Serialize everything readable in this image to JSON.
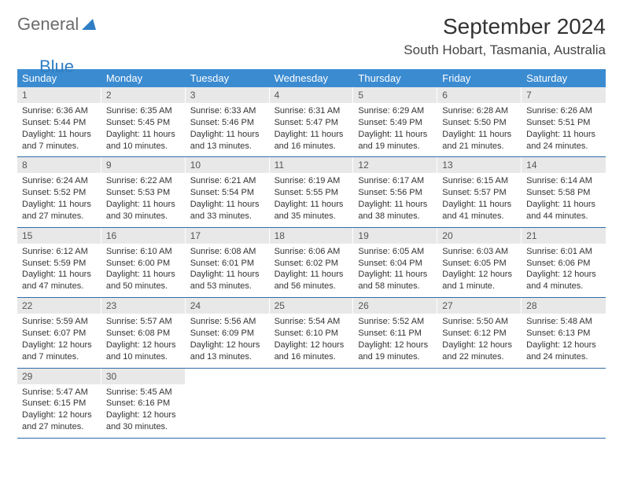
{
  "logo": {
    "part1": "General",
    "part2": "Blue"
  },
  "title": "September 2024",
  "location": "South Hobart, Tasmania, Australia",
  "colors": {
    "header_bg": "#3b8bd1",
    "daynum_bg": "#e8e8e8",
    "row_border": "#2f6ca8",
    "logo_gray": "#6b6b6b",
    "logo_blue": "#2f7dc4"
  },
  "weekdays": [
    "Sunday",
    "Monday",
    "Tuesday",
    "Wednesday",
    "Thursday",
    "Friday",
    "Saturday"
  ],
  "days": [
    {
      "n": "1",
      "sr": "Sunrise: 6:36 AM",
      "ss": "Sunset: 5:44 PM",
      "d1": "Daylight: 11 hours",
      "d2": "and 7 minutes."
    },
    {
      "n": "2",
      "sr": "Sunrise: 6:35 AM",
      "ss": "Sunset: 5:45 PM",
      "d1": "Daylight: 11 hours",
      "d2": "and 10 minutes."
    },
    {
      "n": "3",
      "sr": "Sunrise: 6:33 AM",
      "ss": "Sunset: 5:46 PM",
      "d1": "Daylight: 11 hours",
      "d2": "and 13 minutes."
    },
    {
      "n": "4",
      "sr": "Sunrise: 6:31 AM",
      "ss": "Sunset: 5:47 PM",
      "d1": "Daylight: 11 hours",
      "d2": "and 16 minutes."
    },
    {
      "n": "5",
      "sr": "Sunrise: 6:29 AM",
      "ss": "Sunset: 5:49 PM",
      "d1": "Daylight: 11 hours",
      "d2": "and 19 minutes."
    },
    {
      "n": "6",
      "sr": "Sunrise: 6:28 AM",
      "ss": "Sunset: 5:50 PM",
      "d1": "Daylight: 11 hours",
      "d2": "and 21 minutes."
    },
    {
      "n": "7",
      "sr": "Sunrise: 6:26 AM",
      "ss": "Sunset: 5:51 PM",
      "d1": "Daylight: 11 hours",
      "d2": "and 24 minutes."
    },
    {
      "n": "8",
      "sr": "Sunrise: 6:24 AM",
      "ss": "Sunset: 5:52 PM",
      "d1": "Daylight: 11 hours",
      "d2": "and 27 minutes."
    },
    {
      "n": "9",
      "sr": "Sunrise: 6:22 AM",
      "ss": "Sunset: 5:53 PM",
      "d1": "Daylight: 11 hours",
      "d2": "and 30 minutes."
    },
    {
      "n": "10",
      "sr": "Sunrise: 6:21 AM",
      "ss": "Sunset: 5:54 PM",
      "d1": "Daylight: 11 hours",
      "d2": "and 33 minutes."
    },
    {
      "n": "11",
      "sr": "Sunrise: 6:19 AM",
      "ss": "Sunset: 5:55 PM",
      "d1": "Daylight: 11 hours",
      "d2": "and 35 minutes."
    },
    {
      "n": "12",
      "sr": "Sunrise: 6:17 AM",
      "ss": "Sunset: 5:56 PM",
      "d1": "Daylight: 11 hours",
      "d2": "and 38 minutes."
    },
    {
      "n": "13",
      "sr": "Sunrise: 6:15 AM",
      "ss": "Sunset: 5:57 PM",
      "d1": "Daylight: 11 hours",
      "d2": "and 41 minutes."
    },
    {
      "n": "14",
      "sr": "Sunrise: 6:14 AM",
      "ss": "Sunset: 5:58 PM",
      "d1": "Daylight: 11 hours",
      "d2": "and 44 minutes."
    },
    {
      "n": "15",
      "sr": "Sunrise: 6:12 AM",
      "ss": "Sunset: 5:59 PM",
      "d1": "Daylight: 11 hours",
      "d2": "and 47 minutes."
    },
    {
      "n": "16",
      "sr": "Sunrise: 6:10 AM",
      "ss": "Sunset: 6:00 PM",
      "d1": "Daylight: 11 hours",
      "d2": "and 50 minutes."
    },
    {
      "n": "17",
      "sr": "Sunrise: 6:08 AM",
      "ss": "Sunset: 6:01 PM",
      "d1": "Daylight: 11 hours",
      "d2": "and 53 minutes."
    },
    {
      "n": "18",
      "sr": "Sunrise: 6:06 AM",
      "ss": "Sunset: 6:02 PM",
      "d1": "Daylight: 11 hours",
      "d2": "and 56 minutes."
    },
    {
      "n": "19",
      "sr": "Sunrise: 6:05 AM",
      "ss": "Sunset: 6:04 PM",
      "d1": "Daylight: 11 hours",
      "d2": "and 58 minutes."
    },
    {
      "n": "20",
      "sr": "Sunrise: 6:03 AM",
      "ss": "Sunset: 6:05 PM",
      "d1": "Daylight: 12 hours",
      "d2": "and 1 minute."
    },
    {
      "n": "21",
      "sr": "Sunrise: 6:01 AM",
      "ss": "Sunset: 6:06 PM",
      "d1": "Daylight: 12 hours",
      "d2": "and 4 minutes."
    },
    {
      "n": "22",
      "sr": "Sunrise: 5:59 AM",
      "ss": "Sunset: 6:07 PM",
      "d1": "Daylight: 12 hours",
      "d2": "and 7 minutes."
    },
    {
      "n": "23",
      "sr": "Sunrise: 5:57 AM",
      "ss": "Sunset: 6:08 PM",
      "d1": "Daylight: 12 hours",
      "d2": "and 10 minutes."
    },
    {
      "n": "24",
      "sr": "Sunrise: 5:56 AM",
      "ss": "Sunset: 6:09 PM",
      "d1": "Daylight: 12 hours",
      "d2": "and 13 minutes."
    },
    {
      "n": "25",
      "sr": "Sunrise: 5:54 AM",
      "ss": "Sunset: 6:10 PM",
      "d1": "Daylight: 12 hours",
      "d2": "and 16 minutes."
    },
    {
      "n": "26",
      "sr": "Sunrise: 5:52 AM",
      "ss": "Sunset: 6:11 PM",
      "d1": "Daylight: 12 hours",
      "d2": "and 19 minutes."
    },
    {
      "n": "27",
      "sr": "Sunrise: 5:50 AM",
      "ss": "Sunset: 6:12 PM",
      "d1": "Daylight: 12 hours",
      "d2": "and 22 minutes."
    },
    {
      "n": "28",
      "sr": "Sunrise: 5:48 AM",
      "ss": "Sunset: 6:13 PM",
      "d1": "Daylight: 12 hours",
      "d2": "and 24 minutes."
    },
    {
      "n": "29",
      "sr": "Sunrise: 5:47 AM",
      "ss": "Sunset: 6:15 PM",
      "d1": "Daylight: 12 hours",
      "d2": "and 27 minutes."
    },
    {
      "n": "30",
      "sr": "Sunrise: 5:45 AM",
      "ss": "Sunset: 6:16 PM",
      "d1": "Daylight: 12 hours",
      "d2": "and 30 minutes."
    }
  ]
}
